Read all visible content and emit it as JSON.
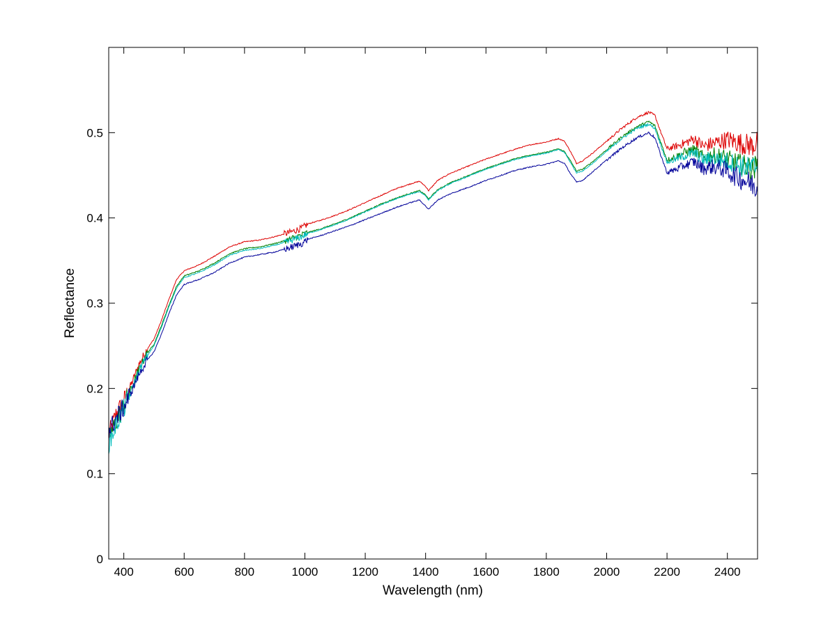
{
  "chart_data": {
    "type": "line",
    "title": "",
    "xlabel": "Wavelength (nm)",
    "ylabel": "Reflectance",
    "xlim": [
      350,
      2500
    ],
    "ylim": [
      0,
      0.6
    ],
    "xticks": [
      400,
      600,
      800,
      1000,
      1200,
      1400,
      1600,
      1800,
      2000,
      2200,
      2400
    ],
    "yticks": [
      0,
      0.1,
      0.2,
      0.3,
      0.4,
      0.5
    ],
    "ytick_labels": [
      "0",
      "0.1",
      "0.2",
      "0.3",
      "0.4",
      "0.5"
    ],
    "grid": false,
    "legend": null,
    "x": [
      350,
      375,
      400,
      425,
      450,
      475,
      500,
      525,
      550,
      575,
      600,
      650,
      700,
      750,
      800,
      850,
      900,
      950,
      990,
      1010,
      1050,
      1100,
      1150,
      1200,
      1250,
      1300,
      1350,
      1380,
      1400,
      1410,
      1420,
      1440,
      1480,
      1550,
      1600,
      1650,
      1700,
      1750,
      1800,
      1840,
      1860,
      1880,
      1900,
      1920,
      1950,
      2000,
      2050,
      2100,
      2140,
      2160,
      2180,
      2200,
      2230,
      2260,
      2290,
      2320,
      2350,
      2380,
      2400,
      2420,
      2450,
      2480,
      2500
    ],
    "series": [
      {
        "color": "#dd0000",
        "values": [
          0.145,
          0.17,
          0.185,
          0.205,
          0.228,
          0.245,
          0.258,
          0.28,
          0.305,
          0.328,
          0.338,
          0.345,
          0.355,
          0.366,
          0.372,
          0.374,
          0.378,
          0.383,
          0.388,
          0.393,
          0.397,
          0.403,
          0.41,
          0.418,
          0.426,
          0.434,
          0.44,
          0.443,
          0.437,
          0.432,
          0.436,
          0.444,
          0.452,
          0.462,
          0.469,
          0.475,
          0.481,
          0.486,
          0.489,
          0.493,
          0.49,
          0.478,
          0.464,
          0.467,
          0.475,
          0.49,
          0.505,
          0.518,
          0.524,
          0.52,
          0.5,
          0.481,
          0.484,
          0.488,
          0.493,
          0.484,
          0.487,
          0.49,
          0.492,
          0.49,
          0.487,
          0.485,
          0.488
        ]
      },
      {
        "color": "#008000",
        "values": [
          0.14,
          0.162,
          0.18,
          0.2,
          0.222,
          0.24,
          0.252,
          0.274,
          0.298,
          0.32,
          0.332,
          0.338,
          0.347,
          0.358,
          0.364,
          0.366,
          0.37,
          0.375,
          0.38,
          0.383,
          0.387,
          0.393,
          0.4,
          0.408,
          0.416,
          0.423,
          0.429,
          0.432,
          0.427,
          0.422,
          0.426,
          0.433,
          0.441,
          0.451,
          0.458,
          0.464,
          0.47,
          0.474,
          0.477,
          0.481,
          0.478,
          0.467,
          0.455,
          0.457,
          0.465,
          0.48,
          0.495,
          0.507,
          0.513,
          0.508,
          0.488,
          0.468,
          0.472,
          0.477,
          0.48,
          0.471,
          0.474,
          0.472,
          0.469,
          0.466,
          0.462,
          0.458,
          0.46
        ]
      },
      {
        "color": "#00bbbb",
        "values": [
          0.135,
          0.158,
          0.176,
          0.197,
          0.22,
          0.237,
          0.25,
          0.272,
          0.296,
          0.318,
          0.33,
          0.336,
          0.345,
          0.356,
          0.362,
          0.364,
          0.368,
          0.373,
          0.378,
          0.382,
          0.386,
          0.392,
          0.399,
          0.407,
          0.415,
          0.422,
          0.428,
          0.431,
          0.426,
          0.421,
          0.425,
          0.432,
          0.44,
          0.45,
          0.457,
          0.463,
          0.469,
          0.473,
          0.476,
          0.48,
          0.477,
          0.465,
          0.453,
          0.455,
          0.463,
          0.478,
          0.493,
          0.505,
          0.51,
          0.505,
          0.485,
          0.465,
          0.469,
          0.473,
          0.476,
          0.468,
          0.47,
          0.468,
          0.466,
          0.464,
          0.46,
          0.458,
          0.462
        ]
      },
      {
        "color": "#000099",
        "values": [
          0.15,
          0.165,
          0.178,
          0.196,
          0.216,
          0.232,
          0.243,
          0.264,
          0.288,
          0.31,
          0.322,
          0.328,
          0.336,
          0.347,
          0.354,
          0.357,
          0.36,
          0.365,
          0.37,
          0.375,
          0.379,
          0.385,
          0.391,
          0.398,
          0.405,
          0.412,
          0.418,
          0.421,
          0.414,
          0.41,
          0.414,
          0.421,
          0.428,
          0.437,
          0.444,
          0.45,
          0.456,
          0.46,
          0.463,
          0.467,
          0.464,
          0.452,
          0.442,
          0.444,
          0.453,
          0.468,
          0.482,
          0.494,
          0.5,
          0.494,
          0.473,
          0.453,
          0.457,
          0.462,
          0.466,
          0.458,
          0.46,
          0.458,
          0.455,
          0.45,
          0.445,
          0.44,
          0.435
        ]
      }
    ]
  }
}
